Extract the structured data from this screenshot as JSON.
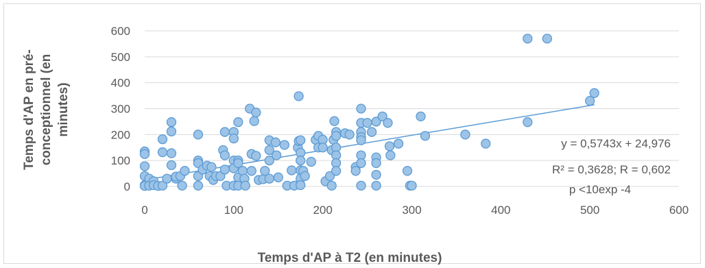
{
  "chart_data": {
    "type": "scatter",
    "title": "",
    "xlabel": "Temps d'AP à T2 (en minutes)",
    "ylabel_lines": [
      "Temps d'AP en pré-",
      "conceptionnel (en",
      "minutes)"
    ],
    "xlim": [
      0,
      600
    ],
    "ylim": [
      0,
      600
    ],
    "x_ticks": [
      "0",
      "100",
      "200",
      "300",
      "400",
      "500",
      "600"
    ],
    "y_ticks": [
      "0",
      "100",
      "200",
      "300",
      "400",
      "500",
      "600"
    ],
    "grid": true,
    "marker_color": "#9dc3e6",
    "marker_edge": "#5b9bd5",
    "trendline_color": "#5b9bd5",
    "trendline": {
      "slope": 0.5743,
      "intercept": 24.976,
      "x_range": [
        0,
        505
      ]
    },
    "annotations": [
      "y = 0,5743x + 24,976",
      "R² = 0,3628; R = 0,602",
      "p <10exp -4"
    ],
    "points": [
      [
        0,
        135
      ],
      [
        0,
        125
      ],
      [
        0,
        78
      ],
      [
        0,
        40
      ],
      [
        0,
        5
      ],
      [
        0,
        2
      ],
      [
        5,
        30
      ],
      [
        5,
        3
      ],
      [
        10,
        20
      ],
      [
        10,
        5
      ],
      [
        15,
        2
      ],
      [
        20,
        182
      ],
      [
        20,
        132
      ],
      [
        20,
        3
      ],
      [
        25,
        30
      ],
      [
        30,
        212
      ],
      [
        30,
        248
      ],
      [
        30,
        128
      ],
      [
        30,
        82
      ],
      [
        35,
        30
      ],
      [
        35,
        38
      ],
      [
        40,
        40
      ],
      [
        42,
        3
      ],
      [
        45,
        60
      ],
      [
        60,
        200
      ],
      [
        60,
        100
      ],
      [
        60,
        90
      ],
      [
        60,
        40
      ],
      [
        60,
        3
      ],
      [
        65,
        65
      ],
      [
        70,
        80
      ],
      [
        73,
        40
      ],
      [
        75,
        75
      ],
      [
        77,
        25
      ],
      [
        80,
        40
      ],
      [
        85,
        40
      ],
      [
        88,
        140
      ],
      [
        90,
        210
      ],
      [
        90,
        120
      ],
      [
        90,
        65
      ],
      [
        92,
        3
      ],
      [
        100,
        210
      ],
      [
        100,
        185
      ],
      [
        100,
        100
      ],
      [
        100,
        70
      ],
      [
        100,
        3
      ],
      [
        105,
        248
      ],
      [
        105,
        100
      ],
      [
        105,
        90
      ],
      [
        105,
        35
      ],
      [
        105,
        3
      ],
      [
        110,
        60
      ],
      [
        112,
        30
      ],
      [
        113,
        3
      ],
      [
        118,
        300
      ],
      [
        120,
        125
      ],
      [
        120,
        60
      ],
      [
        123,
        252
      ],
      [
        125,
        285
      ],
      [
        125,
        118
      ],
      [
        128,
        25
      ],
      [
        133,
        28
      ],
      [
        135,
        60
      ],
      [
        140,
        178
      ],
      [
        140,
        140
      ],
      [
        140,
        100
      ],
      [
        140,
        30
      ],
      [
        147,
        170
      ],
      [
        148,
        120
      ],
      [
        150,
        35
      ],
      [
        157,
        160
      ],
      [
        160,
        3
      ],
      [
        165,
        62
      ],
      [
        168,
        3
      ],
      [
        172,
        150
      ],
      [
        173,
        348
      ],
      [
        173,
        175
      ],
      [
        175,
        178
      ],
      [
        175,
        130
      ],
      [
        175,
        100
      ],
      [
        175,
        62
      ],
      [
        175,
        30
      ],
      [
        175,
        5
      ],
      [
        178,
        60
      ],
      [
        180,
        40
      ],
      [
        187,
        95
      ],
      [
        192,
        180
      ],
      [
        195,
        195
      ],
      [
        195,
        150
      ],
      [
        200,
        180
      ],
      [
        200,
        150
      ],
      [
        203,
        20
      ],
      [
        208,
        40
      ],
      [
        210,
        140
      ],
      [
        210,
        3
      ],
      [
        212,
        180
      ],
      [
        213,
        252
      ],
      [
        215,
        210
      ],
      [
        215,
        150
      ],
      [
        215,
        120
      ],
      [
        215,
        90
      ],
      [
        215,
        60
      ],
      [
        215,
        195
      ],
      [
        225,
        205
      ],
      [
        230,
        200
      ],
      [
        237,
        75
      ],
      [
        237,
        60
      ],
      [
        243,
        300
      ],
      [
        243,
        245
      ],
      [
        243,
        210
      ],
      [
        243,
        190
      ],
      [
        243,
        178
      ],
      [
        243,
        120
      ],
      [
        243,
        90
      ],
      [
        243,
        3
      ],
      [
        250,
        245
      ],
      [
        255,
        210
      ],
      [
        260,
        250
      ],
      [
        260,
        112
      ],
      [
        260,
        90
      ],
      [
        260,
        45
      ],
      [
        260,
        3
      ],
      [
        267,
        270
      ],
      [
        273,
        245
      ],
      [
        275,
        155
      ],
      [
        276,
        120
      ],
      [
        285,
        165
      ],
      [
        295,
        60
      ],
      [
        298,
        3
      ],
      [
        300,
        3
      ],
      [
        310,
        270
      ],
      [
        315,
        195
      ],
      [
        360,
        200
      ],
      [
        383,
        165
      ],
      [
        430,
        570
      ],
      [
        430,
        248
      ],
      [
        452,
        570
      ],
      [
        500,
        330
      ],
      [
        505,
        360
      ]
    ]
  }
}
